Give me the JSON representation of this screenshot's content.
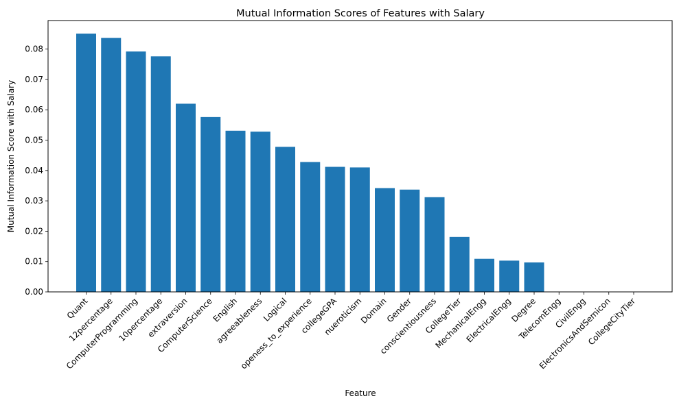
{
  "chart_data": {
    "type": "bar",
    "title": "Mutual Information Scores of Features with Salary",
    "xlabel": "Feature",
    "ylabel": "Mutual Information Score with Salary",
    "categories": [
      "Quant",
      "12percentage",
      "ComputerProgramming",
      "10percentage",
      "extraversion",
      "ComputerScience",
      "English",
      "agreeableness",
      "Logical",
      "openess_to_experience",
      "collegeGPA",
      "nueroticism",
      "Domain",
      "Gender",
      "conscientiousness",
      "CollegeTier",
      "MechanicalEngg",
      "ElectricalEngg",
      "Degree",
      "TelecomEngg",
      "CivilEngg",
      "ElectronicsAndSemicon",
      "CollegeCityTier"
    ],
    "values": [
      0.0851,
      0.0837,
      0.0792,
      0.0776,
      0.062,
      0.0576,
      0.0531,
      0.0528,
      0.0478,
      0.0428,
      0.0412,
      0.041,
      0.0342,
      0.0337,
      0.0312,
      0.0181,
      0.0109,
      0.0103,
      0.0097,
      0.0,
      0.0,
      0.0,
      0.0
    ],
    "yticks": [
      "0.00",
      "0.01",
      "0.02",
      "0.03",
      "0.04",
      "0.05",
      "0.06",
      "0.07",
      "0.08"
    ],
    "ylim": [
      0,
      0.0894
    ],
    "bar_color": "#1f77b4",
    "grid": false,
    "legend": "none"
  }
}
